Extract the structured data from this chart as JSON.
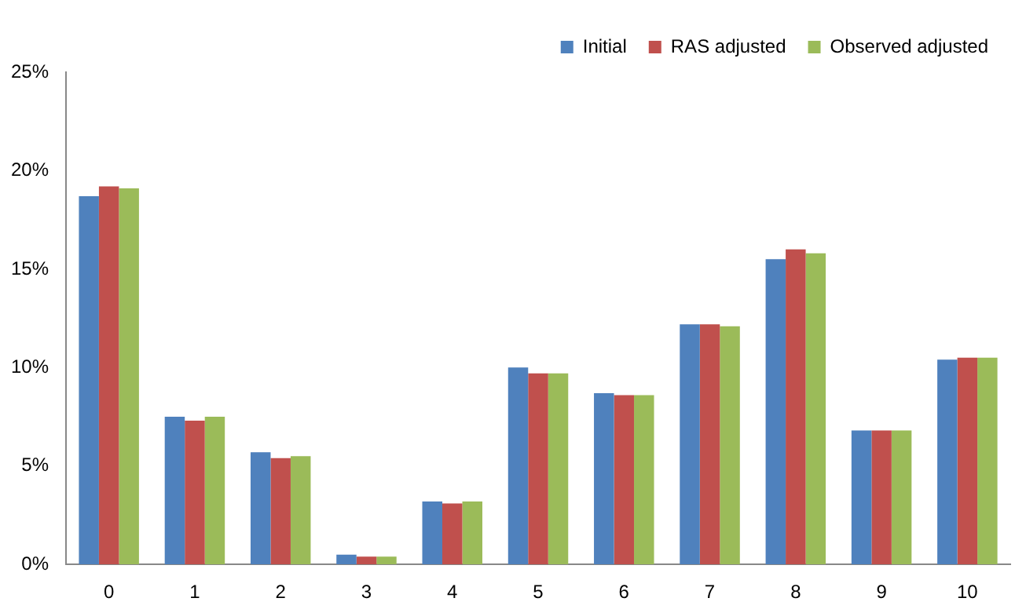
{
  "chart_data": {
    "type": "bar",
    "categories": [
      "0",
      "1",
      "2",
      "3",
      "4",
      "5",
      "6",
      "7",
      "8",
      "9",
      "10"
    ],
    "series": [
      {
        "name": "Initial",
        "color": "#4f81bd",
        "values": [
          18.7,
          7.5,
          5.7,
          0.5,
          3.2,
          10.0,
          8.7,
          12.2,
          15.5,
          6.8,
          10.4
        ]
      },
      {
        "name": "RAS adjusted",
        "color": "#c0504d",
        "values": [
          19.2,
          7.3,
          5.4,
          0.4,
          3.1,
          9.7,
          8.6,
          12.2,
          16.0,
          6.8,
          10.5
        ]
      },
      {
        "name": "Observed adjusted",
        "color": "#9bbb59",
        "values": [
          19.1,
          7.5,
          5.5,
          0.4,
          3.2,
          9.7,
          8.6,
          12.1,
          15.8,
          6.8,
          10.5
        ]
      }
    ],
    "ylim": [
      0,
      25
    ],
    "yticks": [
      {
        "value": 0,
        "label": "0%"
      },
      {
        "value": 5,
        "label": "5%"
      },
      {
        "value": 10,
        "label": "10%"
      },
      {
        "value": 15,
        "label": "15%"
      },
      {
        "value": 20,
        "label": "20%"
      },
      {
        "value": 25,
        "label": "25%"
      }
    ],
    "grid": false,
    "legend": "top right"
  }
}
